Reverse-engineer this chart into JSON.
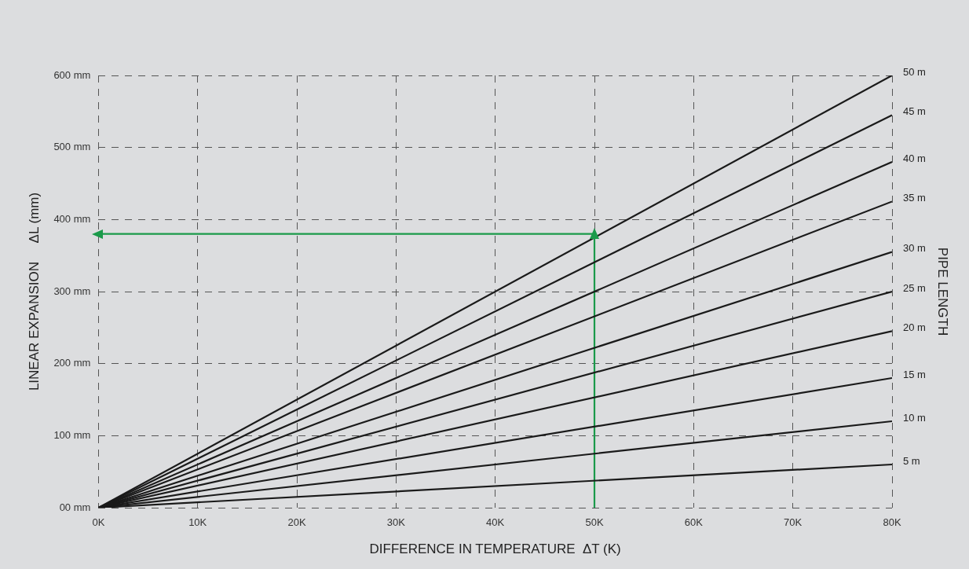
{
  "chart_data": {
    "type": "line",
    "xlabel": "DIFFERENCE IN TEMPERATURE  ΔT (K)",
    "ylabel": "LINEAR EXPANSION     ΔL (mm)",
    "y2label": "PIPE LENGTH",
    "xlim": [
      0,
      80
    ],
    "xticks": [
      {
        "value": 0,
        "label": "0K"
      },
      {
        "value": 10,
        "label": "10K"
      },
      {
        "value": 20,
        "label": "20K"
      },
      {
        "value": 30,
        "label": "30K"
      },
      {
        "value": 40,
        "label": "40K"
      },
      {
        "value": 50,
        "label": "50K"
      },
      {
        "value": 60,
        "label": "60K"
      },
      {
        "value": 70,
        "label": "70K"
      },
      {
        "value": 80,
        "label": "80K"
      }
    ],
    "ylim": [
      0,
      600
    ],
    "yticks": [
      {
        "value": 0,
        "label": "00 mm"
      },
      {
        "value": 100,
        "label": "100 mm"
      },
      {
        "value": 200,
        "label": "200 mm"
      },
      {
        "value": 300,
        "label": "300 mm"
      },
      {
        "value": 400,
        "label": "400 mm"
      },
      {
        "value": 500,
        "label": "500 mm"
      },
      {
        "value": 600,
        "label": "600 mm"
      }
    ],
    "grid": true,
    "legend": false,
    "series": [
      {
        "name": "50 m",
        "color": "#1a1a1a",
        "x": [
          0,
          80
        ],
        "values": [
          0,
          600
        ]
      },
      {
        "name": "45 m",
        "color": "#1a1a1a",
        "x": [
          0,
          80
        ],
        "values": [
          0,
          545
        ]
      },
      {
        "name": "40 m",
        "color": "#1a1a1a",
        "x": [
          0,
          80
        ],
        "values": [
          0,
          480
        ]
      },
      {
        "name": "35 m",
        "color": "#1a1a1a",
        "x": [
          0,
          80
        ],
        "values": [
          0,
          425
        ]
      },
      {
        "name": "30 m",
        "color": "#1a1a1a",
        "x": [
          0,
          80
        ],
        "values": [
          0,
          355
        ]
      },
      {
        "name": "25 m",
        "color": "#1a1a1a",
        "x": [
          0,
          80
        ],
        "values": [
          0,
          300
        ]
      },
      {
        "name": "20 m",
        "color": "#1a1a1a",
        "x": [
          0,
          80
        ],
        "values": [
          0,
          245
        ]
      },
      {
        "name": "15 m",
        "color": "#1a1a1a",
        "x": [
          0,
          80
        ],
        "values": [
          0,
          180
        ]
      },
      {
        "name": "10 m",
        "color": "#1a1a1a",
        "x": [
          0,
          80
        ],
        "values": [
          0,
          120
        ]
      },
      {
        "name": "5 m",
        "color": "#1a1a1a",
        "x": [
          0,
          80
        ],
        "values": [
          0,
          60
        ]
      },
      {
        "color": "#1a9a4a",
        "x": [
          50,
          50,
          0
        ],
        "values": [
          0,
          380,
          380
        ]
      }
    ]
  }
}
